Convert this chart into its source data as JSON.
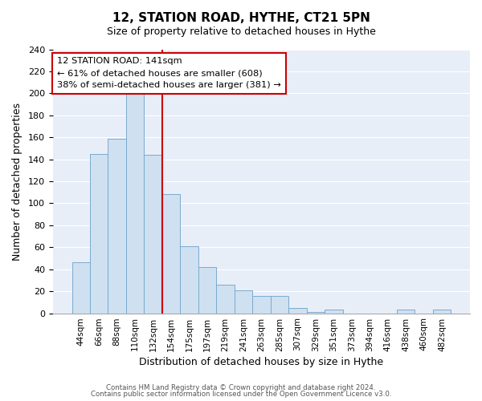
{
  "title": "12, STATION ROAD, HYTHE, CT21 5PN",
  "subtitle": "Size of property relative to detached houses in Hythe",
  "xlabel": "Distribution of detached houses by size in Hythe",
  "ylabel": "Number of detached properties",
  "bar_labels": [
    "44sqm",
    "66sqm",
    "88sqm",
    "110sqm",
    "132sqm",
    "154sqm",
    "175sqm",
    "197sqm",
    "219sqm",
    "241sqm",
    "263sqm",
    "285sqm",
    "307sqm",
    "329sqm",
    "351sqm",
    "373sqm",
    "394sqm",
    "416sqm",
    "438sqm",
    "460sqm",
    "482sqm"
  ],
  "bar_values": [
    46,
    145,
    159,
    201,
    144,
    108,
    61,
    42,
    26,
    21,
    16,
    16,
    5,
    1,
    3,
    0,
    0,
    0,
    3,
    0,
    3
  ],
  "bar_color": "#cfe0f0",
  "bar_edge_color": "#7aabcf",
  "vline_x": 4.5,
  "vline_color": "#cc0000",
  "annotation_title": "12 STATION ROAD: 141sqm",
  "annotation_line1": "← 61% of detached houses are smaller (608)",
  "annotation_line2": "38% of semi-detached houses are larger (381) →",
  "annotation_box_color": "#ffffff",
  "annotation_box_edge": "#cc0000",
  "ylim": [
    0,
    240
  ],
  "yticks": [
    0,
    20,
    40,
    60,
    80,
    100,
    120,
    140,
    160,
    180,
    200,
    220,
    240
  ],
  "footer1": "Contains HM Land Registry data © Crown copyright and database right 2024.",
  "footer2": "Contains public sector information licensed under the Open Government Licence v3.0.",
  "bg_color": "#ffffff",
  "plot_bg_color": "#e8eef8",
  "grid_color": "#ffffff"
}
